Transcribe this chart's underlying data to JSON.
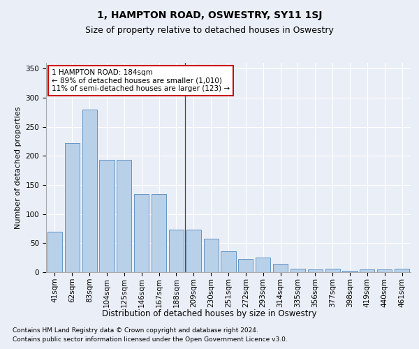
{
  "title": "1, HAMPTON ROAD, OSWESTRY, SY11 1SJ",
  "subtitle": "Size of property relative to detached houses in Oswestry",
  "xlabel": "Distribution of detached houses by size in Oswestry",
  "ylabel": "Number of detached properties",
  "categories": [
    "41sqm",
    "62sqm",
    "83sqm",
    "104sqm",
    "125sqm",
    "146sqm",
    "167sqm",
    "188sqm",
    "209sqm",
    "230sqm",
    "251sqm",
    "272sqm",
    "293sqm",
    "314sqm",
    "335sqm",
    "356sqm",
    "377sqm",
    "398sqm",
    "419sqm",
    "440sqm",
    "461sqm"
  ],
  "values": [
    70,
    222,
    280,
    193,
    193,
    134,
    134,
    73,
    73,
    58,
    36,
    23,
    25,
    14,
    6,
    5,
    6,
    3,
    5,
    5,
    6
  ],
  "bar_color": "#b8d0e8",
  "bar_edge_color": "#5588bb",
  "vline_index": 7,
  "annotation_text": "1 HAMPTON ROAD: 184sqm\n← 89% of detached houses are smaller (1,010)\n11% of semi-detached houses are larger (123) →",
  "annotation_box_color": "#ffffff",
  "annotation_box_edge": "#cc0000",
  "ylim": [
    0,
    360
  ],
  "yticks": [
    0,
    50,
    100,
    150,
    200,
    250,
    300,
    350
  ],
  "footer1": "Contains HM Land Registry data © Crown copyright and database right 2024.",
  "footer2": "Contains public sector information licensed under the Open Government Licence v3.0.",
  "bg_color": "#eaeff7",
  "plot_bg_color": "#eaeff7",
  "title_fontsize": 10,
  "subtitle_fontsize": 9,
  "axis_label_fontsize": 8.5,
  "tick_fontsize": 7.5,
  "annotation_fontsize": 7.5,
  "footer_fontsize": 6.5,
  "ylabel_fontsize": 8
}
